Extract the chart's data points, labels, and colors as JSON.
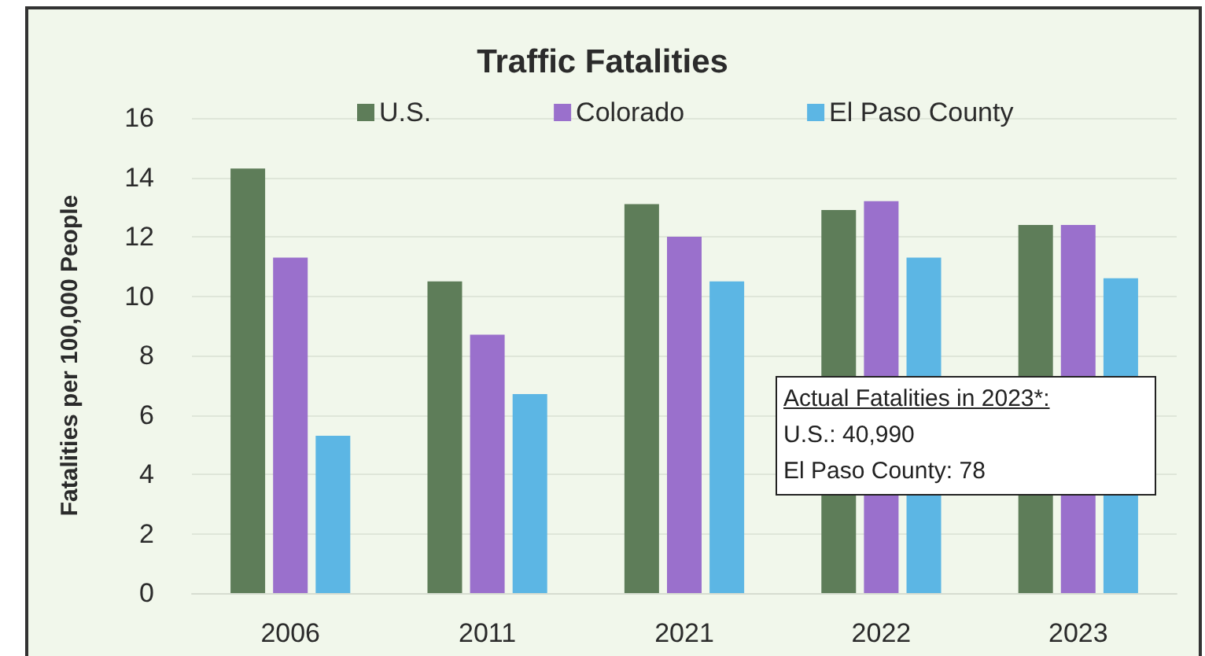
{
  "chart_data": {
    "type": "bar",
    "title": "Traffic Fatalities",
    "ylabel": "Fatalities per 100,000 People",
    "categories": [
      "2006",
      "2011",
      "2021",
      "2022",
      "2023"
    ],
    "series": [
      {
        "name": "U.S.",
        "color": "#5e7d59",
        "values": [
          14.3,
          10.5,
          13.1,
          12.9,
          12.4
        ]
      },
      {
        "name": "Colorado",
        "color": "#9a70cc",
        "values": [
          11.3,
          8.7,
          12.0,
          13.2,
          12.4
        ]
      },
      {
        "name": "El Paso County",
        "color": "#5cb6e4",
        "values": [
          5.3,
          6.7,
          10.5,
          11.3,
          10.6
        ]
      }
    ],
    "ylim": [
      0,
      16
    ],
    "yticks": [
      0,
      2,
      4,
      6,
      8,
      10,
      12,
      14,
      16
    ],
    "grid": "y",
    "legend": "top",
    "annotations": [
      "Actual Fatalities in 2023*:",
      "U.S.: 40,990",
      "El Paso County: 78"
    ]
  }
}
